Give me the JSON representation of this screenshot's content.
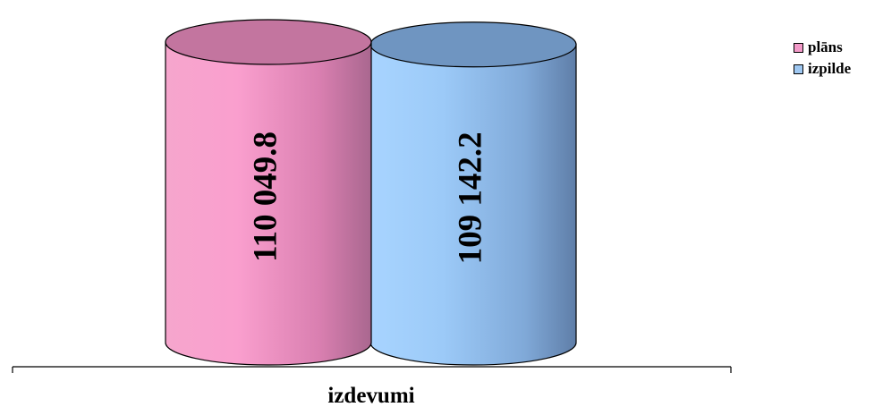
{
  "chart_data": {
    "type": "bar",
    "style": "3d-cylinder",
    "categories": [
      "izdevumi"
    ],
    "xlabel": "izdevumi",
    "series": [
      {
        "name": "plāns",
        "values": [
          110049.8
        ],
        "label": "110 049.8",
        "color": "#e882b8"
      },
      {
        "name": "izpilde",
        "values": [
          109142.2
        ],
        "label": "109 142.2",
        "color": "#8ab2e0"
      }
    ],
    "legend_position": "top-right",
    "grid": false
  }
}
